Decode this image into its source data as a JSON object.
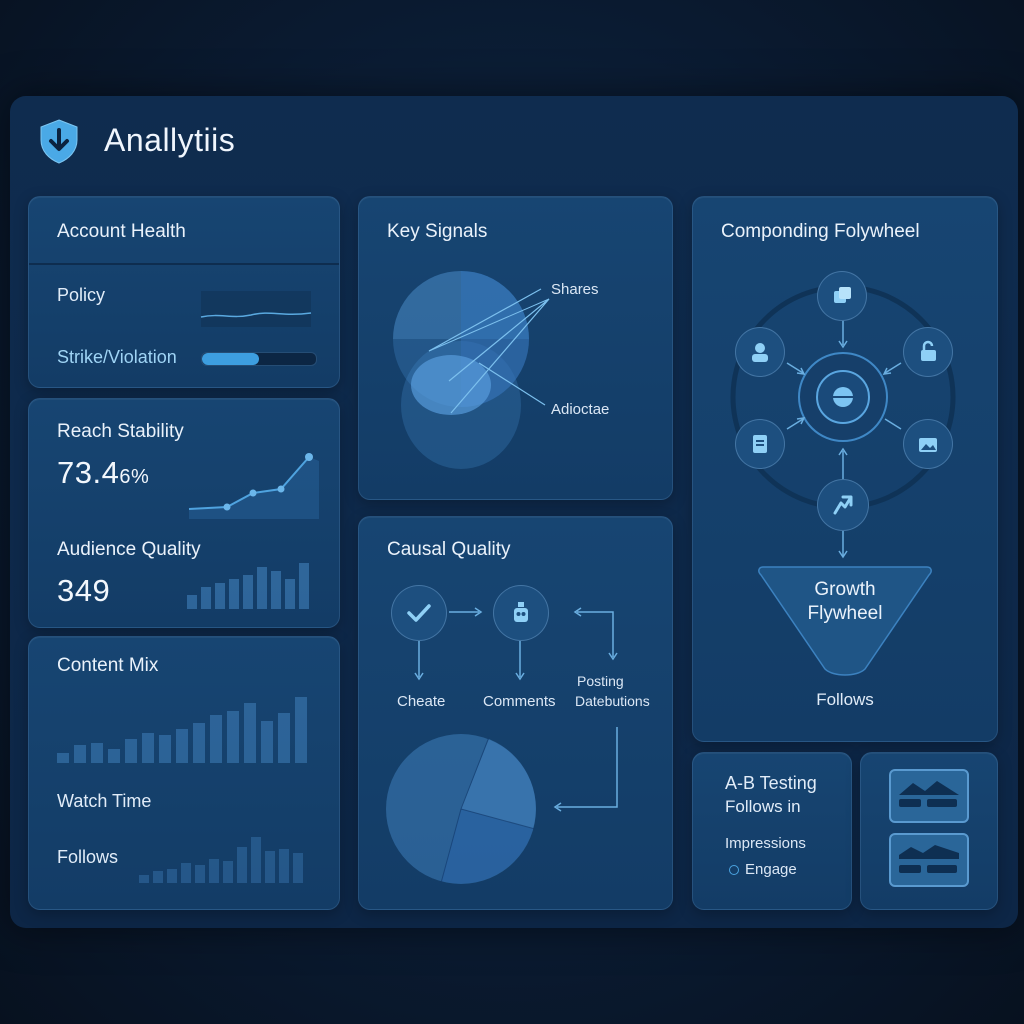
{
  "app": {
    "title": "Anallytiis",
    "logo_icon": "shield-download-icon"
  },
  "account_health": {
    "title": "Account Health",
    "policy_label": "Policy",
    "strike_label": "Strike/Violation",
    "strike_level": 0.5
  },
  "reach_stability": {
    "title": "Reach Stability",
    "value": "73.4",
    "value_suffix": "6%"
  },
  "audience_quality": {
    "title": "Audience Quality",
    "value": "349"
  },
  "content_mix": {
    "title": "Content Mix",
    "watch_time_label": "Watch Time",
    "follows_label": "Follows"
  },
  "key_signals": {
    "title": "Key Signals",
    "labels": [
      "Shares",
      "Adioctae"
    ]
  },
  "causal_quality": {
    "title": "Causal Quality",
    "nodes": [
      "Cheate",
      "Comments"
    ],
    "posting_label_1": "Posting",
    "posting_label_2": "Datebutions"
  },
  "flywheel": {
    "title": "Componding Folywheel",
    "funnel_line1": "Growth",
    "funnel_line2": "Flywheel",
    "footer": "Follows"
  },
  "ab_testing": {
    "title_line1": "A-B Testing",
    "title_line2": "Follows in",
    "impressions_label": "Impressions",
    "engage_label": "Engage"
  },
  "colors": {
    "accent": "#4aa3e0",
    "card": "#174572",
    "background": "#0a1a30"
  }
}
